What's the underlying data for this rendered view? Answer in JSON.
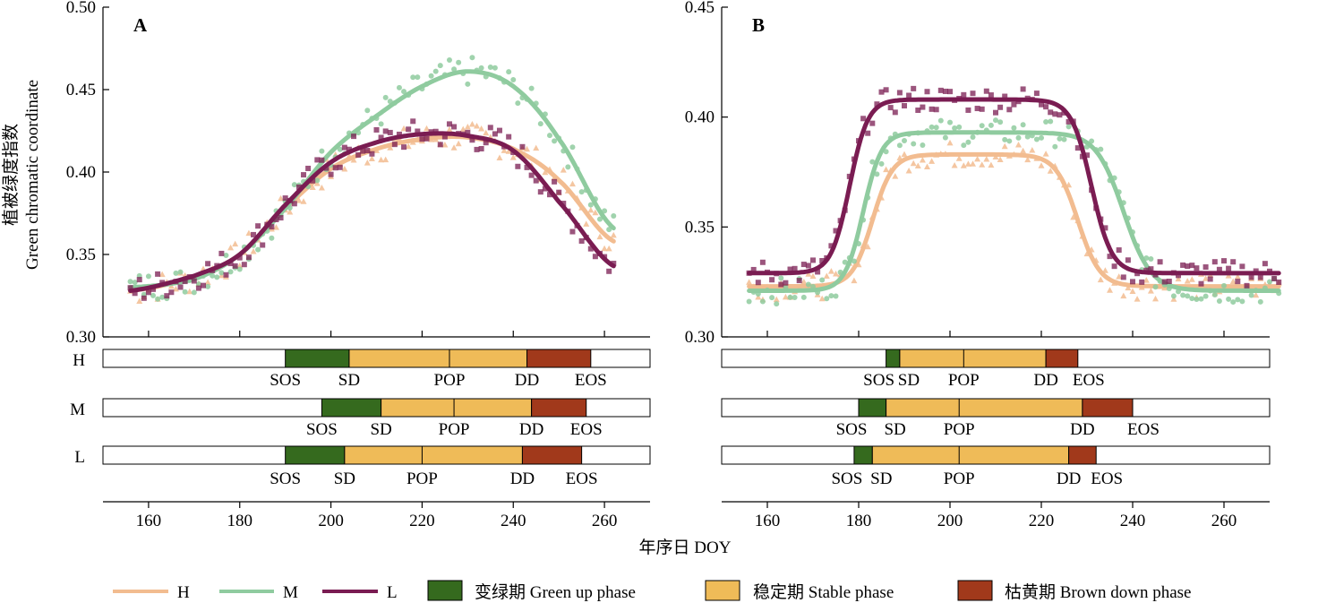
{
  "colors": {
    "H": "#f2bc90",
    "M": "#8fcb9f",
    "L": "#7a1c52",
    "green_up": "#356a1e",
    "stable": "#efbb58",
    "brown_down": "#a1391b"
  },
  "axis_labels": {
    "y_cn": "植被绿度指数",
    "y_en": "Green chromatic coordinate",
    "x": "年序日 DOY"
  },
  "legend": {
    "H": "H",
    "M": "M",
    "L": "L",
    "green_up": "变绿期 Green up phase",
    "stable": "稳定期 Stable phase",
    "brown_down": "枯黄期 Brown down phase"
  },
  "chart_data": [
    {
      "type": "scatter",
      "panel": "A",
      "grid": false,
      "legend_position": "bottom",
      "xlim": [
        150,
        270
      ],
      "ylim": [
        0.3,
        0.5
      ],
      "x_ticks": [
        "160",
        "180",
        "200",
        "220",
        "240",
        "260"
      ],
      "y_ticks": [
        "0.30",
        "0.35",
        "0.40",
        "0.45",
        "0.50"
      ],
      "fit_params": {
        "H": [
          [
            156,
            0.328
          ],
          [
            170,
            0.336
          ],
          [
            180,
            0.35
          ],
          [
            190,
            0.378
          ],
          [
            200,
            0.402
          ],
          [
            210,
            0.414
          ],
          [
            220,
            0.42
          ],
          [
            230,
            0.421
          ],
          [
            240,
            0.414
          ],
          [
            250,
            0.395
          ],
          [
            262,
            0.358
          ]
        ],
        "M": [
          [
            156,
            0.33
          ],
          [
            170,
            0.335
          ],
          [
            180,
            0.35
          ],
          [
            190,
            0.378
          ],
          [
            200,
            0.412
          ],
          [
            210,
            0.434
          ],
          [
            220,
            0.452
          ],
          [
            230,
            0.461
          ],
          [
            240,
            0.452
          ],
          [
            250,
            0.42
          ],
          [
            262,
            0.366
          ]
        ],
        "L": [
          [
            156,
            0.328
          ],
          [
            170,
            0.337
          ],
          [
            180,
            0.35
          ],
          [
            190,
            0.38
          ],
          [
            200,
            0.406
          ],
          [
            210,
            0.418
          ],
          [
            220,
            0.423
          ],
          [
            230,
            0.422
          ],
          [
            240,
            0.413
          ],
          [
            250,
            0.382
          ],
          [
            262,
            0.343
          ]
        ]
      },
      "phenology_bars": {
        "H": {
          "label": "H",
          "SOS": 190,
          "SD": 204,
          "POP": 226,
          "DD": 243,
          "EOS": 257
        },
        "M": {
          "label": "M",
          "SOS": 198,
          "SD": 211,
          "POP": 227,
          "DD": 244,
          "EOS": 256
        },
        "L": {
          "label": "L",
          "SOS": 190,
          "SD": 203,
          "POP": 220,
          "DD": 242,
          "EOS": 255
        }
      },
      "bar_tick_labels": [
        "SOS",
        "SD",
        "POP",
        "DD",
        "EOS"
      ]
    },
    {
      "type": "scatter",
      "panel": "B",
      "grid": false,
      "legend_position": "bottom",
      "xlim": [
        150,
        270
      ],
      "ylim": [
        0.3,
        0.45
      ],
      "x_ticks": [
        "160",
        "180",
        "200",
        "220",
        "240",
        "260"
      ],
      "y_ticks": [
        "0.30",
        "0.35",
        "0.40",
        "0.45"
      ],
      "fit_params": {
        "H": {
          "base": 0.323,
          "top": 0.383,
          "rise_mid": 183,
          "rise_k": 2.2,
          "fall_mid": 228,
          "fall_k": 2.4,
          "xmin": 156,
          "xmax": 272
        },
        "M": {
          "base": 0.321,
          "top": 0.393,
          "rise_mid": 181,
          "rise_k": 2.0,
          "fall_mid": 238,
          "fall_k": 3.0,
          "xmin": 156,
          "xmax": 272
        },
        "L": {
          "base": 0.329,
          "top": 0.408,
          "rise_mid": 178,
          "rise_k": 2.0,
          "fall_mid": 231,
          "fall_k": 2.2,
          "xmin": 156,
          "xmax": 272
        }
      },
      "phenology_bars": {
        "H": {
          "label": "H",
          "SOS": 186,
          "SD": 189,
          "POP": 203,
          "DD": 221,
          "EOS": 228
        },
        "M": {
          "label": "M",
          "SOS": 180,
          "SD": 186,
          "POP": 202,
          "DD": 229,
          "EOS": 240
        },
        "L": {
          "label": "L",
          "SOS": 179,
          "SD": 183,
          "POP": 202,
          "DD": 226,
          "EOS": 232
        }
      },
      "bar_tick_labels": [
        "SOS",
        "SD",
        "POP",
        "DD",
        "EOS"
      ]
    }
  ]
}
